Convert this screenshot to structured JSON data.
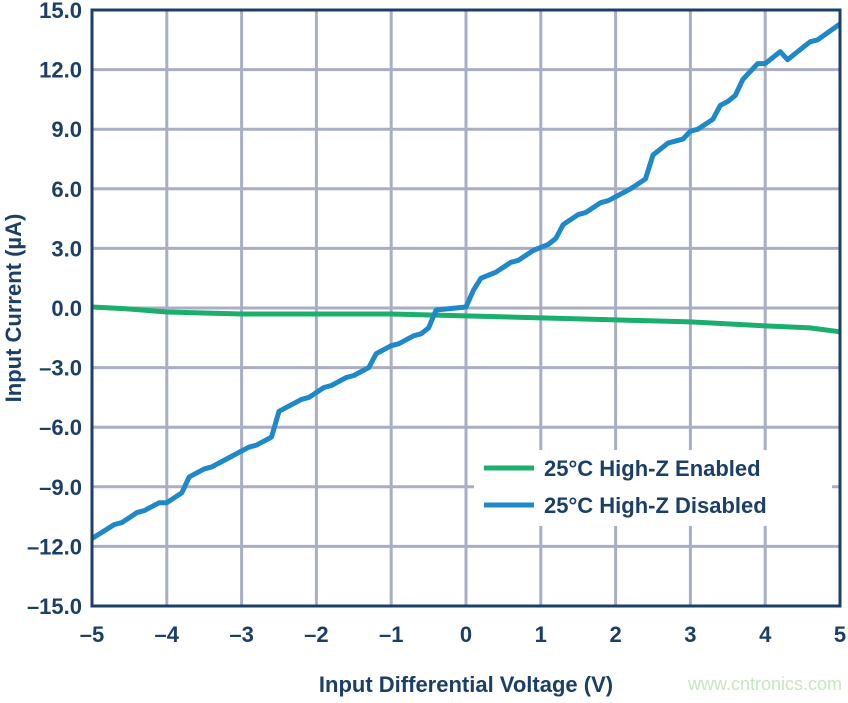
{
  "chart_data": {
    "type": "line",
    "title": "",
    "xlabel": "Input Differential Voltage (V)",
    "ylabel": "Input Current (µA)",
    "xlim": [
      -5,
      5
    ],
    "ylim": [
      -15,
      15
    ],
    "xticks": [
      -5,
      -4,
      -3,
      -2,
      -1,
      0,
      1,
      2,
      3,
      4,
      5
    ],
    "xtick_labels": [
      "–5",
      "–4",
      "–3",
      "–2",
      "–1",
      "0",
      "1",
      "2",
      "3",
      "4",
      "5"
    ],
    "yticks": [
      -15,
      -12,
      -9,
      -6,
      -3,
      0,
      3,
      6,
      9,
      12,
      15
    ],
    "ytick_labels": [
      "–15.0",
      "–12.0",
      "–9.0",
      "–6.0",
      "–3.0",
      "0.0",
      "3.0",
      "6.0",
      "9.0",
      "12.0",
      "15.0"
    ],
    "grid": true,
    "legend_position": "bottom-right",
    "series": [
      {
        "name": "25°C High-Z Enabled",
        "color": "#1aaf6c",
        "x": [
          -5,
          -4.5,
          -4,
          -3,
          -2,
          -1,
          0,
          1,
          2,
          3,
          4,
          4.6,
          5
        ],
        "y": [
          0.05,
          -0.05,
          -0.2,
          -0.3,
          -0.3,
          -0.3,
          -0.4,
          -0.5,
          -0.6,
          -0.7,
          -0.9,
          -1.0,
          -1.2
        ]
      },
      {
        "name": "25°C High-Z Disabled",
        "color": "#1f88c9",
        "x": [
          -5,
          -4.7,
          -4.6,
          -4.4,
          -4.3,
          -4.1,
          -4.0,
          -3.8,
          -3.7,
          -3.5,
          -3.4,
          -3.2,
          -3.1,
          -2.9,
          -2.8,
          -2.6,
          -2.5,
          -2.2,
          -2.1,
          -1.9,
          -1.8,
          -1.6,
          -1.5,
          -1.3,
          -1.2,
          -1.0,
          -0.9,
          -0.7,
          -0.6,
          -0.5,
          -0.4,
          0.0,
          0.1,
          0.2,
          0.4,
          0.6,
          0.7,
          0.9,
          1.1,
          1.2,
          1.3,
          1.5,
          1.6,
          1.8,
          1.9,
          2.1,
          2.2,
          2.4,
          2.5,
          2.7,
          2.9,
          3.0,
          3.1,
          3.3,
          3.4,
          3.5,
          3.6,
          3.7,
          3.9,
          4.0,
          4.2,
          4.3,
          4.5,
          4.6,
          4.7,
          5.0
        ],
        "y": [
          -11.6,
          -10.9,
          -10.8,
          -10.3,
          -10.2,
          -9.8,
          -9.8,
          -9.3,
          -8.5,
          -8.1,
          -8.0,
          -7.6,
          -7.4,
          -7.0,
          -6.9,
          -6.5,
          -5.2,
          -4.6,
          -4.5,
          -4.0,
          -3.9,
          -3.5,
          -3.4,
          -3.0,
          -2.3,
          -1.9,
          -1.8,
          -1.4,
          -1.3,
          -1.0,
          -0.1,
          0.05,
          0.9,
          1.5,
          1.8,
          2.3,
          2.4,
          2.9,
          3.2,
          3.5,
          4.2,
          4.7,
          4.8,
          5.3,
          5.4,
          5.8,
          6.0,
          6.5,
          7.7,
          8.3,
          8.5,
          8.9,
          9.0,
          9.5,
          10.2,
          10.4,
          10.7,
          11.5,
          12.3,
          12.3,
          12.9,
          12.5,
          13.1,
          13.4,
          13.5,
          14.3
        ]
      }
    ]
  },
  "watermark": "www.cntronics.com",
  "colors": {
    "axis": "#1b3f66",
    "grid": "#a9aec4",
    "watermark": "#c8e6c0"
  }
}
